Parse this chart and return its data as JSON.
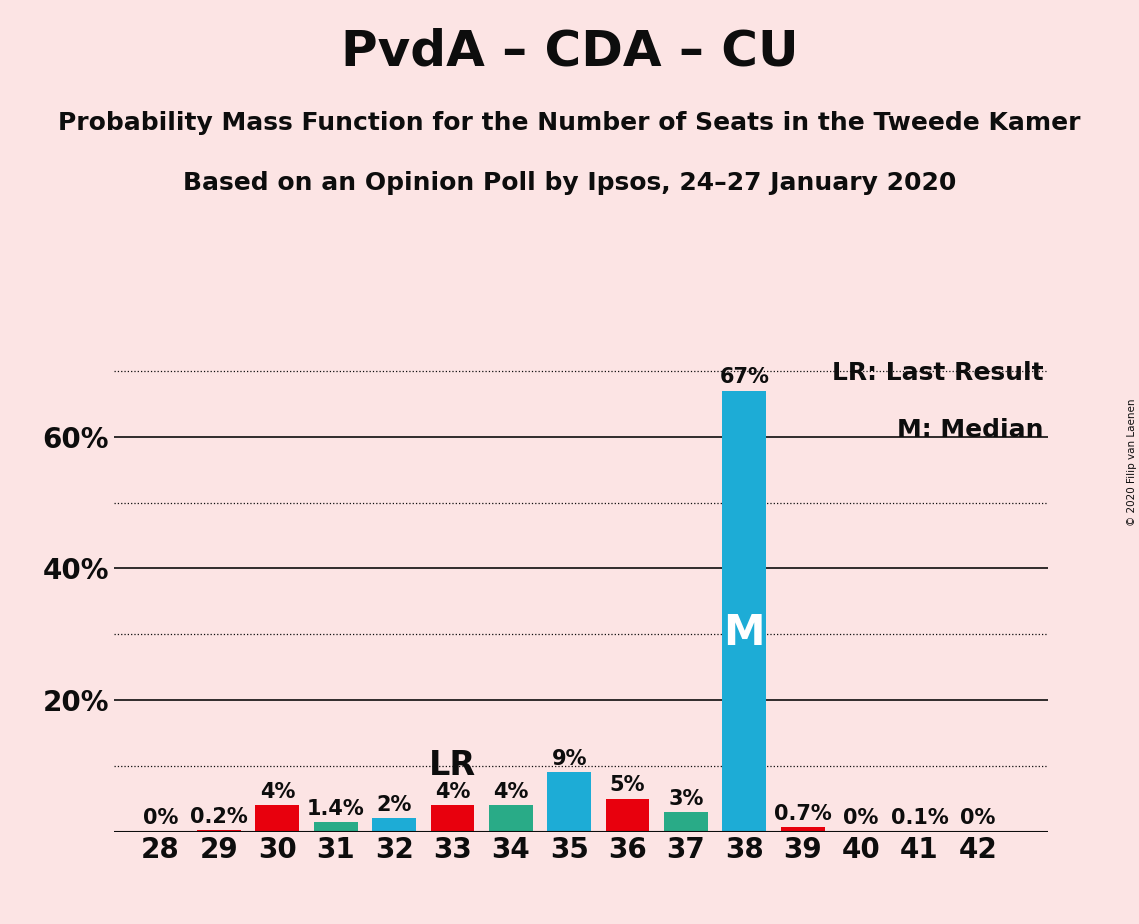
{
  "title": "PvdA – CDA – CU",
  "subtitle1": "Probability Mass Function for the Number of Seats in the Tweede Kamer",
  "subtitle2": "Based on an Opinion Poll by Ipsos, 24–27 January 2020",
  "copyright": "© 2020 Filip van Laenen",
  "legend_lr": "LR: Last Result",
  "legend_m": "M: Median",
  "background_color": "#fce4e4",
  "seats": [
    28,
    29,
    30,
    31,
    32,
    33,
    34,
    35,
    36,
    37,
    38,
    39,
    40,
    41,
    42
  ],
  "values": [
    0.0,
    0.2,
    4.0,
    1.4,
    2.0,
    4.0,
    4.0,
    9.0,
    5.0,
    3.0,
    67.0,
    0.7,
    0.0,
    0.1,
    0.0
  ],
  "bar_colors": [
    "#e8000d",
    "#e8000d",
    "#e8000d",
    "#29ab87",
    "#1dacd6",
    "#e8000d",
    "#29ab87",
    "#1dacd6",
    "#e8000d",
    "#29ab87",
    "#1dacd6",
    "#e8000d",
    "#e8000d",
    "#1dacd6",
    "#e8000d"
  ],
  "labels": [
    "0%",
    "0.2%",
    "4%",
    "1.4%",
    "2%",
    "4%",
    "4%",
    "9%",
    "5%",
    "3%",
    "67%",
    "0.7%",
    "0%",
    "0.1%",
    "0%"
  ],
  "lr_seat": 33,
  "median_seat": 38,
  "ylim": [
    0,
    73
  ],
  "ytick_positions": [
    0,
    20,
    40,
    60
  ],
  "ytick_labels": [
    "",
    "20%",
    "40%",
    "60%"
  ],
  "solid_gridlines": [
    20,
    40,
    60
  ],
  "dotted_gridlines": [
    10,
    30,
    50,
    70
  ],
  "bar_width": 0.75,
  "title_fontsize": 36,
  "subtitle_fontsize": 18,
  "label_fontsize": 15,
  "axis_fontsize": 20,
  "text_color": "#0d0d0d"
}
